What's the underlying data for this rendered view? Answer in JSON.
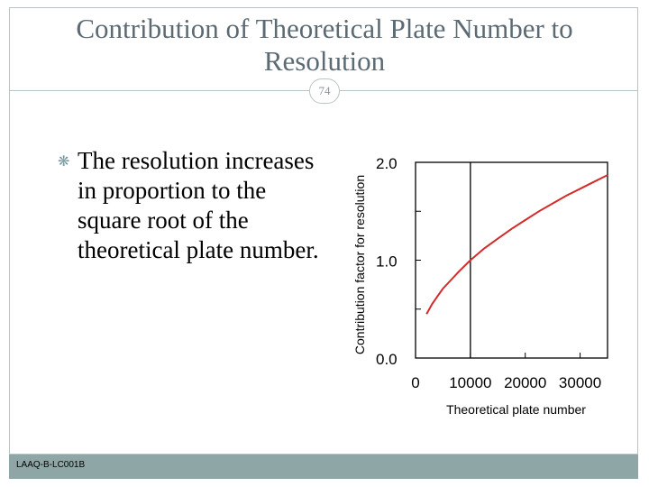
{
  "slide": {
    "title": "Contribution of Theoretical Plate Number to Resolution",
    "page_number": "74",
    "bullet_text": "The resolution increases in proportion to the square root of the theoretical plate number.",
    "footer_code": "LAAQ-B-LC001B"
  },
  "colors": {
    "title": "#5b6a73",
    "frame": "#b9c4c4",
    "footer": "#8fa6a6",
    "bullet_icon": "#7a9aa2",
    "curve": "#d42a2a"
  },
  "chart_data": {
    "type": "line",
    "title": "",
    "xlabel": "Theoretical plate number",
    "ylabel": "Contribution factor for resolution",
    "xlim": [
      0,
      35000
    ],
    "ylim": [
      0,
      2
    ],
    "x_tick_labels": [
      {
        "value": 0,
        "label": "0"
      },
      {
        "value": 10000,
        "label": "10000"
      },
      {
        "value": 20000,
        "label": "20000"
      },
      {
        "value": 30000,
        "label": "30000"
      }
    ],
    "y_tick_labels": [
      {
        "value": 0,
        "label": "0.0"
      },
      {
        "value": 1,
        "label": "1.0"
      },
      {
        "value": 2,
        "label": "2.0"
      }
    ],
    "y_minor_ticks": [
      0.5,
      1.5
    ],
    "reference_line_x": 10000,
    "series": [
      {
        "x": [
          2000,
          3000,
          4000,
          5000,
          6000,
          8000,
          10000,
          12500,
          15000,
          17500,
          20000,
          22500,
          25000,
          27500,
          30000,
          32500,
          35000
        ],
        "y": [
          0.45,
          0.55,
          0.63,
          0.71,
          0.77,
          0.89,
          1.0,
          1.12,
          1.22,
          1.32,
          1.41,
          1.5,
          1.58,
          1.66,
          1.73,
          1.8,
          1.87
        ]
      }
    ],
    "grid": false
  }
}
